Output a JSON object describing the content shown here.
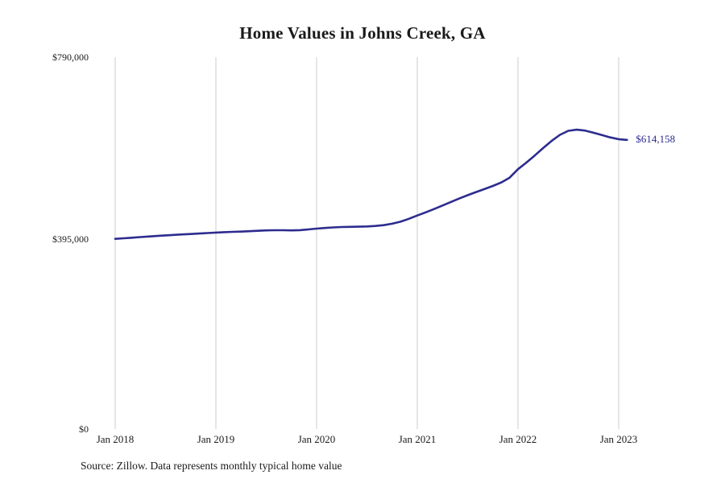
{
  "source_note": "Source: Zillow. Data represents monthly typical home value",
  "colors": {
    "line": "#2d2c8f",
    "grid": "#cccccc",
    "text": "#1a1a1a"
  },
  "chart_data": {
    "type": "line",
    "title": "Home Values in Johns Creek, GA",
    "xlabel": "",
    "ylabel": "",
    "ylim": [
      0,
      790000
    ],
    "grid": "vertical-yearly",
    "legend": false,
    "frequency": "monthly",
    "x_start": "Jan 2018",
    "x_tick_labels": [
      "Jan 2018",
      "Jan 2019",
      "Jan 2020",
      "Jan 2021",
      "Jan 2022",
      "Jan 2023"
    ],
    "y_tick_values": [
      790000,
      395000,
      0
    ],
    "y_tick_labels": [
      "$790,000",
      "$395,000",
      "$0"
    ],
    "annotation": {
      "text": "$614,158",
      "position": "end-of-line",
      "value": 614158
    },
    "series": [
      {
        "name": "Typical home value",
        "values": [
          404000,
          405200,
          406500,
          407800,
          409000,
          410200,
          411400,
          412400,
          413400,
          414400,
          415400,
          416400,
          417400,
          418200,
          418900,
          419500,
          420300,
          421200,
          422000,
          422400,
          422300,
          422100,
          422600,
          424000,
          425800,
          427200,
          428400,
          429200,
          429600,
          429900,
          430400,
          431400,
          433200,
          436200,
          440400,
          446600,
          453600,
          460400,
          467400,
          474800,
          482400,
          489800,
          496800,
          503400,
          509800,
          516400,
          523800,
          534000,
          552000,
          566000,
          581000,
          597000,
          612000,
          625000,
          633500,
          636000,
          634000,
          629500,
          624500,
          619500,
          615800,
          614158
        ]
      }
    ]
  }
}
